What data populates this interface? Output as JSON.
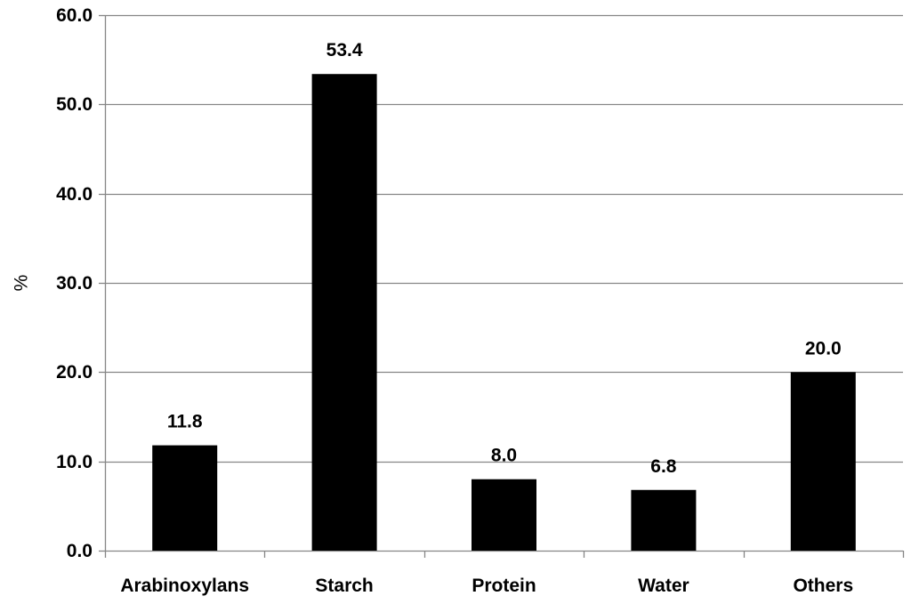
{
  "chart_data": {
    "type": "bar",
    "title": "",
    "xlabel": "",
    "ylabel": "%",
    "categories": [
      "Arabinoxylans",
      "Starch",
      "Protein",
      "Water",
      "Others"
    ],
    "values": [
      11.8,
      53.4,
      8.0,
      6.8,
      20.0
    ],
    "data_labels": [
      "11.8",
      "53.4",
      "8.0",
      "6.8",
      "20.0"
    ],
    "ylim": [
      0,
      60
    ],
    "yticks": [
      0,
      10,
      20,
      30,
      40,
      50,
      60
    ],
    "ytick_labels": [
      "0.0",
      "10.0",
      "20.0",
      "30.0",
      "40.0",
      "50.0",
      "60.0"
    ],
    "grid": true,
    "legend": "none",
    "bar_color": "#000000",
    "grid_color": "#868686"
  }
}
